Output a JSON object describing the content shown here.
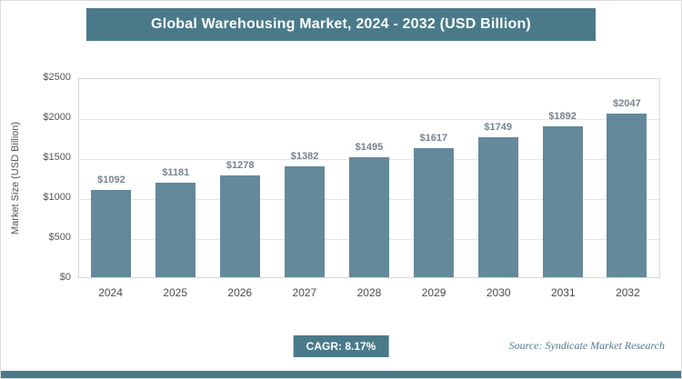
{
  "chart_data": {
    "type": "bar",
    "title": "Global Warehousing Market, 2024 - 2032 (USD Billion)",
    "ylabel": "Market Size (USD Billion)",
    "xlabel": "",
    "categories": [
      "2024",
      "2025",
      "2026",
      "2027",
      "2028",
      "2029",
      "2030",
      "2031",
      "2032"
    ],
    "values": [
      1092,
      1181,
      1278,
      1382,
      1495,
      1617,
      1749,
      1892,
      2047
    ],
    "value_labels": [
      "$1092",
      "$1181",
      "$1278",
      "$1382",
      "$1495",
      "$1617",
      "$1749",
      "$1892",
      "$2047"
    ],
    "ylim": [
      0,
      2500
    ],
    "yticks": [
      {
        "value": 0,
        "label": "$0"
      },
      {
        "value": 500,
        "label": "$500"
      },
      {
        "value": 1000,
        "label": "$1000"
      },
      {
        "value": 1500,
        "label": "$1500"
      },
      {
        "value": 2000,
        "label": "$2000"
      },
      {
        "value": 2500,
        "label": "$2500"
      }
    ],
    "grid": "horizontal",
    "legend": "none",
    "cagr_label": "CAGR: 8.17%",
    "source": "Source: Syndicate Market Research",
    "colors": {
      "accent": "#4a7a8a",
      "bar": "#64899b",
      "value_label": "#75848c",
      "gridline": "#e4e7e9"
    }
  }
}
